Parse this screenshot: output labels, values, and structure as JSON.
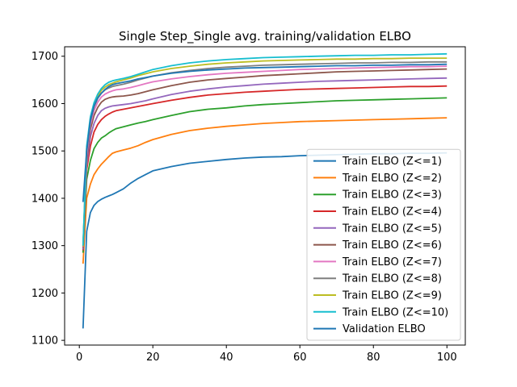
{
  "chart_data": {
    "type": "line",
    "title": "Single Step_Single avg. training/validation ELBO",
    "xlabel": "",
    "ylabel": "",
    "xlim": [
      -4,
      105
    ],
    "ylim": [
      1090,
      1720
    ],
    "xticks": [
      0,
      20,
      40,
      60,
      80,
      100
    ],
    "yticks": [
      1100,
      1200,
      1300,
      1400,
      1500,
      1600,
      1700
    ],
    "grid": false,
    "legend_position": "lower-right",
    "x": [
      1,
      2,
      3,
      4,
      5,
      6,
      7,
      8,
      9,
      10,
      12,
      14,
      16,
      18,
      20,
      25,
      30,
      35,
      40,
      45,
      50,
      55,
      60,
      65,
      70,
      75,
      80,
      85,
      90,
      95,
      100
    ],
    "series": [
      {
        "name": "Train ELBO (Z<=1)",
        "color": "#1f77b4",
        "values": [
          1125,
          1330,
          1370,
          1385,
          1393,
          1398,
          1402,
          1405,
          1408,
          1412,
          1420,
          1432,
          1442,
          1450,
          1458,
          1467,
          1474,
          1478,
          1482,
          1485,
          1487,
          1488,
          1490,
          1491,
          1492,
          1493,
          1494,
          1494,
          1495,
          1495,
          1496
        ]
      },
      {
        "name": "Train ELBO (Z<=2)",
        "color": "#ff7f0e",
        "values": [
          1262,
          1400,
          1430,
          1450,
          1462,
          1472,
          1480,
          1488,
          1495,
          1498,
          1502,
          1506,
          1511,
          1518,
          1524,
          1535,
          1543,
          1548,
          1552,
          1555,
          1558,
          1560,
          1562,
          1563,
          1564,
          1565,
          1566,
          1567,
          1568,
          1569,
          1570
        ]
      },
      {
        "name": "Train ELBO (Z<=3)",
        "color": "#2ca02c",
        "values": [
          1285,
          1440,
          1480,
          1505,
          1518,
          1527,
          1532,
          1538,
          1543,
          1547,
          1551,
          1555,
          1559,
          1562,
          1566,
          1575,
          1583,
          1588,
          1591,
          1595,
          1598,
          1600,
          1602,
          1604,
          1606,
          1607,
          1608,
          1609,
          1610,
          1611,
          1612
        ]
      },
      {
        "name": "Train ELBO (Z<=4)",
        "color": "#d62728",
        "values": [
          1290,
          1460,
          1510,
          1540,
          1556,
          1566,
          1573,
          1578,
          1582,
          1585,
          1588,
          1591,
          1594,
          1597,
          1600,
          1607,
          1613,
          1618,
          1621,
          1624,
          1626,
          1628,
          1630,
          1631,
          1632,
          1633,
          1634,
          1635,
          1636,
          1636,
          1637
        ]
      },
      {
        "name": "Train ELBO (Z<=5)",
        "color": "#9467bd",
        "values": [
          1292,
          1470,
          1530,
          1558,
          1575,
          1585,
          1590,
          1593,
          1595,
          1596,
          1598,
          1600,
          1603,
          1606,
          1610,
          1619,
          1626,
          1631,
          1635,
          1638,
          1641,
          1643,
          1645,
          1647,
          1648,
          1649,
          1650,
          1651,
          1652,
          1653,
          1654
        ]
      },
      {
        "name": "Train ELBO (Z<=6)",
        "color": "#8c564b",
        "values": [
          1295,
          1480,
          1545,
          1575,
          1592,
          1603,
          1609,
          1612,
          1614,
          1615,
          1616,
          1618,
          1621,
          1625,
          1629,
          1638,
          1645,
          1650,
          1653,
          1656,
          1659,
          1661,
          1663,
          1665,
          1667,
          1668,
          1669,
          1670,
          1671,
          1672,
          1673
        ]
      },
      {
        "name": "Train ELBO (Z<=7)",
        "color": "#e377c2",
        "values": [
          1297,
          1490,
          1555,
          1585,
          1603,
          1614,
          1620,
          1624,
          1627,
          1629,
          1631,
          1634,
          1638,
          1642,
          1646,
          1652,
          1657,
          1661,
          1664,
          1666,
          1668,
          1670,
          1672,
          1673,
          1674,
          1675,
          1676,
          1677,
          1678,
          1678,
          1679
        ]
      },
      {
        "name": "Train ELBO (Z<=8)",
        "color": "#7f7f7f",
        "values": [
          1298,
          1500,
          1562,
          1593,
          1611,
          1622,
          1629,
          1633,
          1636,
          1638,
          1641,
          1645,
          1650,
          1654,
          1658,
          1665,
          1670,
          1674,
          1677,
          1679,
          1681,
          1682,
          1683,
          1684,
          1685,
          1686,
          1686,
          1687,
          1687,
          1688,
          1688
        ]
      },
      {
        "name": "Train ELBO (Z<=9)",
        "color": "#bcbd22",
        "values": [
          1299,
          1505,
          1568,
          1598,
          1616,
          1628,
          1635,
          1640,
          1643,
          1646,
          1650,
          1654,
          1659,
          1663,
          1667,
          1674,
          1679,
          1683,
          1686,
          1688,
          1690,
          1691,
          1692,
          1693,
          1694,
          1694,
          1695,
          1695,
          1696,
          1696,
          1696
        ]
      },
      {
        "name": "Train ELBO (Z<=10)",
        "color": "#17becf",
        "values": [
          1300,
          1510,
          1572,
          1602,
          1620,
          1632,
          1640,
          1645,
          1648,
          1650,
          1653,
          1657,
          1662,
          1667,
          1672,
          1680,
          1686,
          1690,
          1693,
          1695,
          1697,
          1698,
          1699,
          1700,
          1701,
          1702,
          1702,
          1703,
          1703,
          1704,
          1705
        ]
      },
      {
        "name": "Validation ELBO",
        "color": "#1f77b4",
        "values": [
          1392,
          1500,
          1565,
          1595,
          1612,
          1622,
          1630,
          1636,
          1640,
          1642,
          1645,
          1648,
          1652,
          1655,
          1658,
          1664,
          1668,
          1671,
          1673,
          1675,
          1676,
          1677,
          1678,
          1679,
          1680,
          1680,
          1681,
          1681,
          1682,
          1682,
          1683
        ]
      }
    ]
  }
}
